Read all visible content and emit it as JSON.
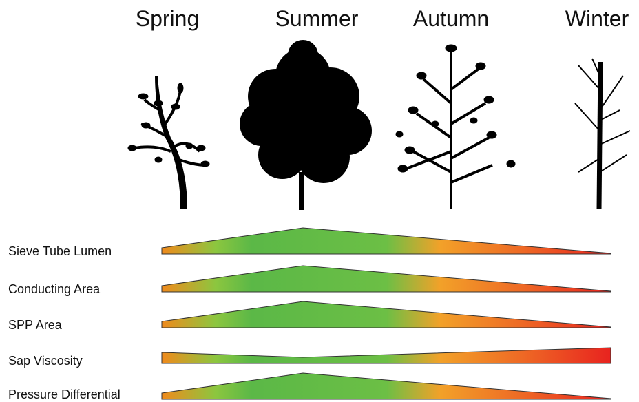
{
  "seasons": [
    "Spring",
    "Summer",
    "Autumn",
    "Winter"
  ],
  "rows": [
    "Sieve Tube Lumen",
    "Conducting Area",
    "SPP Area",
    "Sap Viscosity",
    "Pressure Differential"
  ]
}
